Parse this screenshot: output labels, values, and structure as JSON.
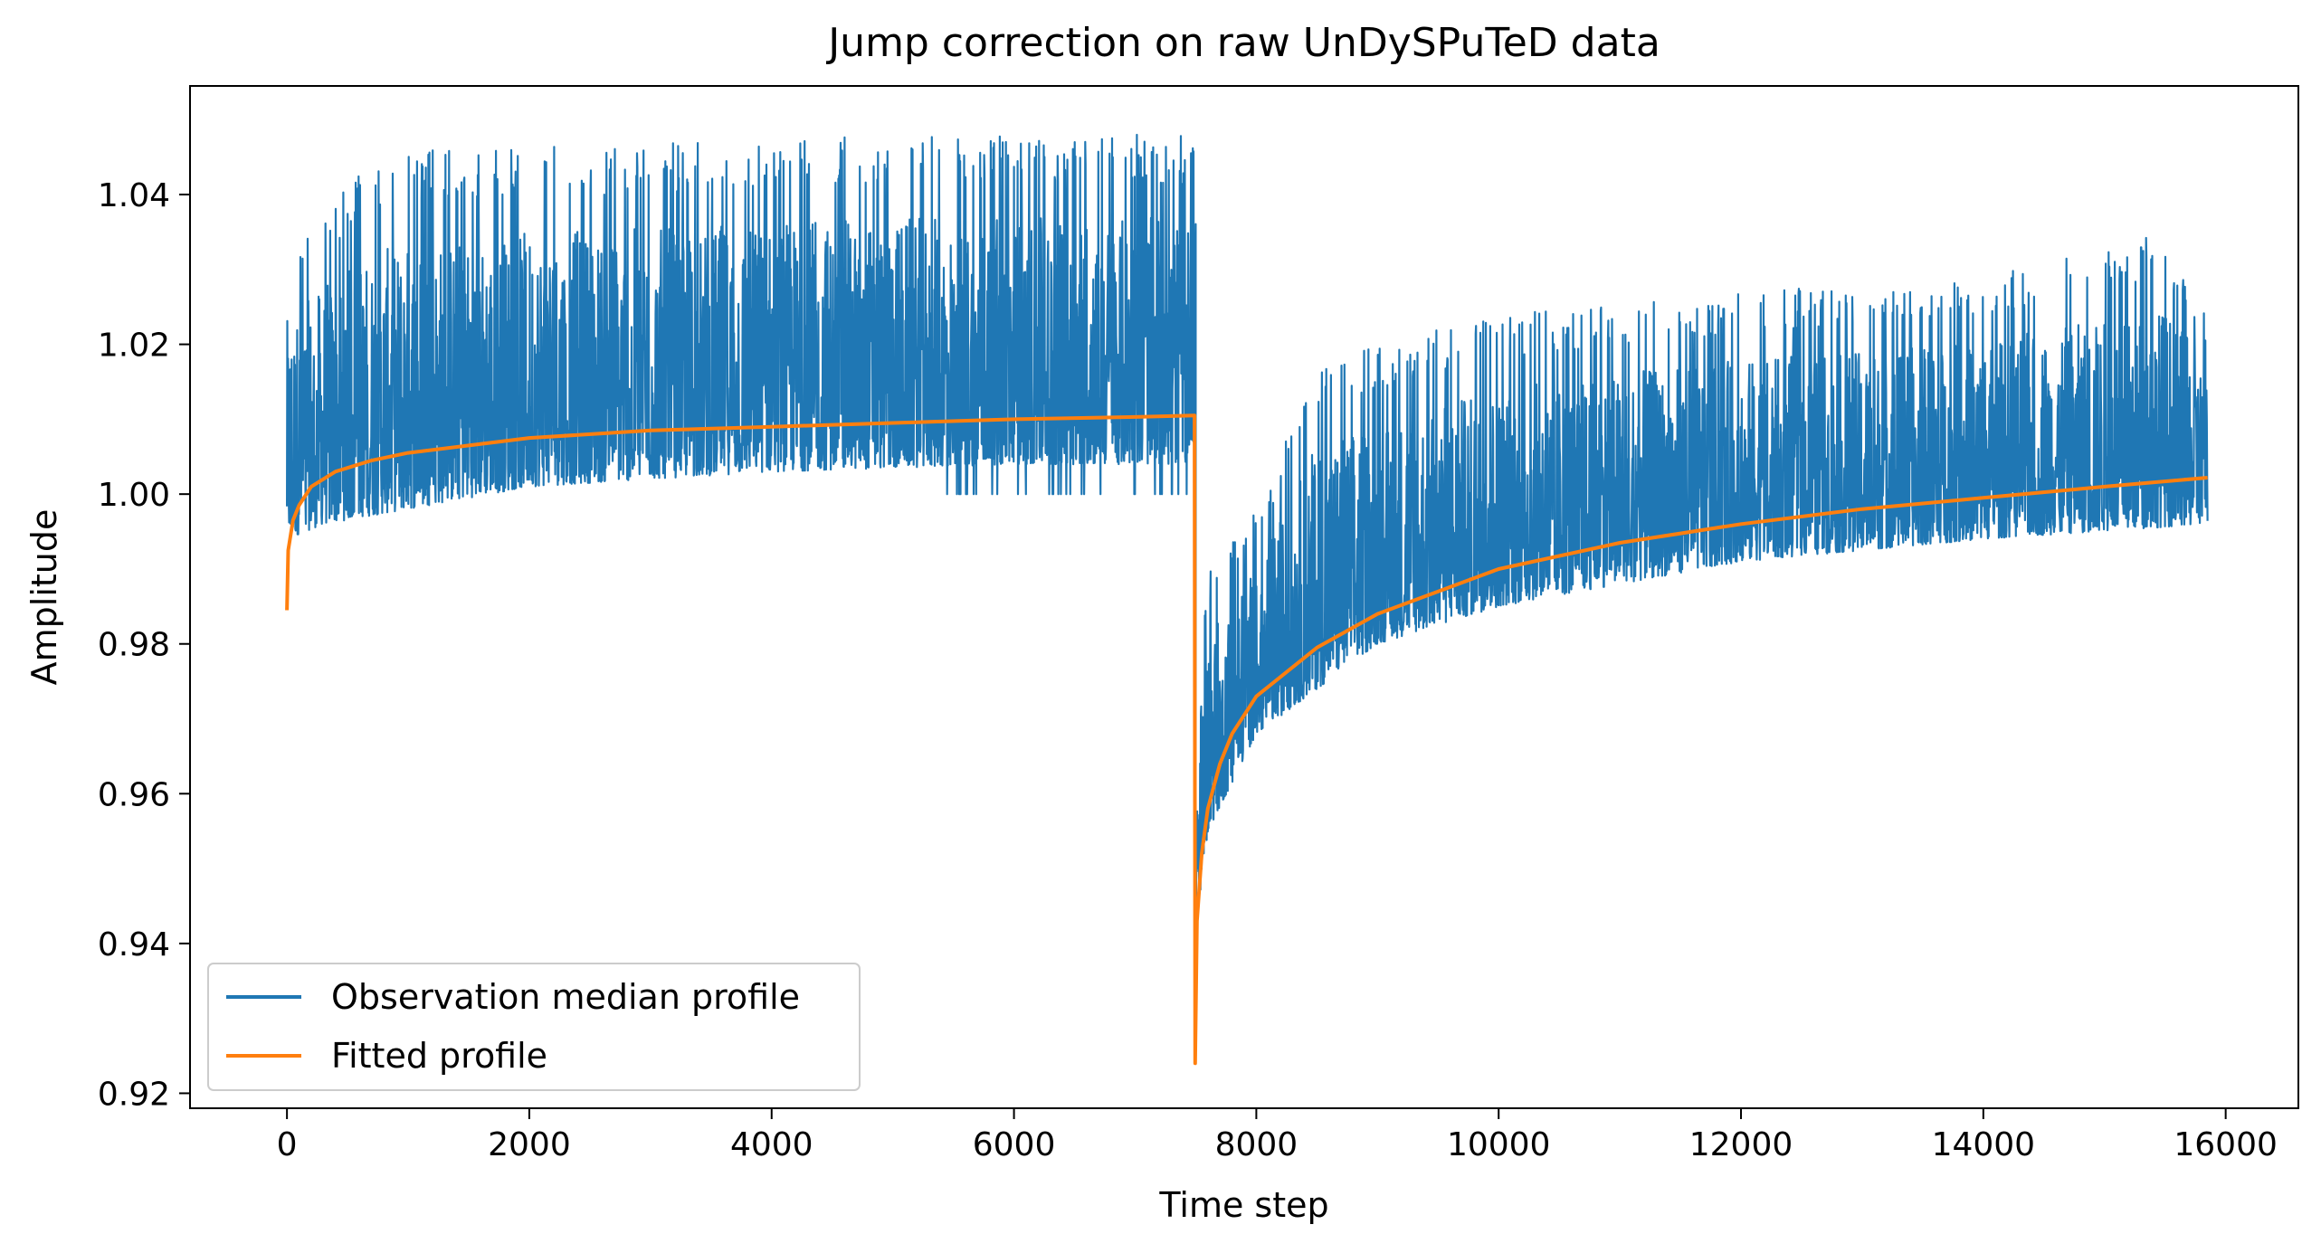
{
  "chart_data": {
    "type": "line",
    "title": "Jump correction on raw UnDySPuTeD data",
    "xlabel": "Time step",
    "ylabel": "Amplitude",
    "xlim": [
      -800,
      16600
    ],
    "ylim": [
      0.918,
      1.0545
    ],
    "xticks": [
      0,
      2000,
      4000,
      6000,
      8000,
      10000,
      12000,
      14000,
      16000
    ],
    "xtick_labels": [
      "0",
      "2000",
      "4000",
      "6000",
      "8000",
      "10000",
      "12000",
      "14000",
      "16000"
    ],
    "yticks": [
      0.92,
      0.94,
      0.96,
      0.98,
      1.0,
      1.02,
      1.04
    ],
    "ytick_labels": [
      "0.92",
      "0.94",
      "0.96",
      "0.98",
      "1.00",
      "1.02",
      "1.04"
    ],
    "grid": false,
    "legend_position": "lower-left",
    "legend": [
      "Observation median profile",
      "Fitted profile"
    ],
    "series": [
      {
        "name": "Observation median profile",
        "color": "#1f77b4",
        "style": "dense noisy signal",
        "segments": [
          {
            "x_range": [
              0,
              7500
            ],
            "lower_envelope": [
              [
                0,
                0.994
              ],
              [
                300,
                0.996
              ],
              [
                1000,
                0.998
              ],
              [
                2000,
                1.001
              ],
              [
                4000,
                1.003
              ],
              [
                6000,
                1.004
              ],
              [
                7500,
                1.004
              ]
            ],
            "upper_envelope": [
              [
                0,
                1.033
              ],
              [
                500,
                1.042
              ],
              [
                1000,
                1.046
              ],
              [
                3500,
                1.047
              ],
              [
                5000,
                1.048
              ],
              [
                7400,
                1.048
              ]
            ],
            "frequent_floor_drops_to": 1.0
          },
          {
            "x_range": [
              7500,
              15850
            ],
            "lower_envelope": [
              [
                7500,
                0.942
              ],
              [
                7600,
                0.955
              ],
              [
                8000,
                0.968
              ],
              [
                9000,
                0.98
              ],
              [
                10000,
                0.985
              ],
              [
                12000,
                0.991
              ],
              [
                14000,
                0.994
              ],
              [
                15850,
                0.996
              ]
            ],
            "upper_envelope": [
              [
                7500,
                0.975
              ],
              [
                7600,
                0.99
              ],
              [
                8000,
                0.998
              ],
              [
                8500,
                1.018
              ],
              [
                10000,
                1.024
              ],
              [
                12000,
                1.027
              ],
              [
                14000,
                1.029
              ],
              [
                15500,
                1.035
              ],
              [
                15850,
                1.024
              ]
            ]
          }
        ]
      },
      {
        "name": "Fitted profile",
        "color": "#ff7f0e",
        "points": [
          [
            0,
            0.9845
          ],
          [
            10,
            0.9925
          ],
          [
            50,
            0.9965
          ],
          [
            100,
            0.9985
          ],
          [
            200,
            1.001
          ],
          [
            400,
            1.003
          ],
          [
            700,
            1.0045
          ],
          [
            1000,
            1.0055
          ],
          [
            1500,
            1.0065
          ],
          [
            2000,
            1.0075
          ],
          [
            3000,
            1.0085
          ],
          [
            4000,
            1.009
          ],
          [
            5000,
            1.0095
          ],
          [
            6000,
            1.01
          ],
          [
            7000,
            1.0103
          ],
          [
            7490,
            1.0105
          ],
          [
            7495,
            0.924
          ],
          [
            7510,
            0.943
          ],
          [
            7550,
            0.952
          ],
          [
            7600,
            0.958
          ],
          [
            7700,
            0.964
          ],
          [
            7800,
            0.968
          ],
          [
            8000,
            0.973
          ],
          [
            8500,
            0.9795
          ],
          [
            9000,
            0.984
          ],
          [
            10000,
            0.99
          ],
          [
            11000,
            0.9935
          ],
          [
            12000,
            0.996
          ],
          [
            13000,
            0.998
          ],
          [
            14000,
            0.9995
          ],
          [
            15000,
            1.001
          ],
          [
            15850,
            1.0022
          ]
        ]
      }
    ]
  }
}
